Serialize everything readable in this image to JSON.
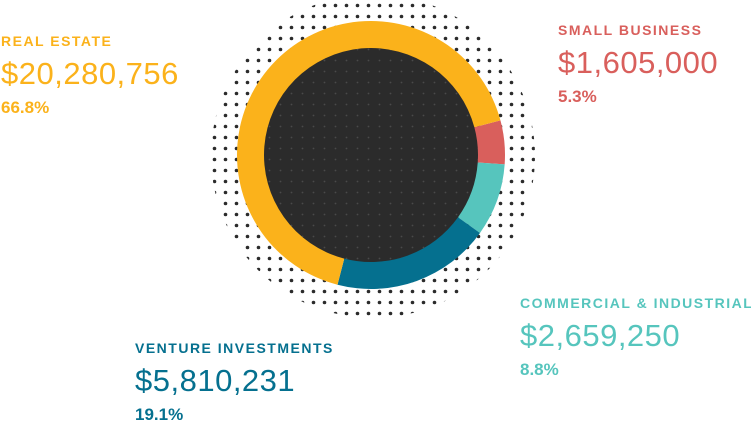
{
  "colors": {
    "real_estate": "#fbb21b",
    "small_business": "#d95f5c",
    "commercial_industrial": "#56c5bd",
    "venture_investments": "#05708f",
    "center": "#2b2b2b",
    "dots": "#2b2b2b"
  },
  "labels": {
    "real_estate": {
      "name": "REAL ESTATE",
      "amount": "$20,280,756",
      "percent": "66.8%"
    },
    "small_business": {
      "name": "SMALL BUSINESS",
      "amount": "$1,605,000",
      "percent": "5.3%"
    },
    "commercial_industrial": {
      "name": "COMMERCIAL & INDUSTRIAL",
      "amount": "$2,659,250",
      "percent": "8.8%"
    },
    "venture_investments": {
      "name": "VENTURE INVESTMENTS",
      "amount": "$5,810,231",
      "percent": "19.1%"
    }
  },
  "chart_data": {
    "type": "pie",
    "style": "donut",
    "categories": [
      "REAL ESTATE",
      "SMALL BUSINESS",
      "COMMERCIAL & INDUSTRIAL",
      "VENTURE INVESTMENTS"
    ],
    "values": [
      20280756,
      1605000,
      2659250,
      5810231
    ],
    "percents": [
      66.8,
      5.3,
      8.8,
      19.1
    ],
    "series_colors": [
      "#fbb21b",
      "#d95f5c",
      "#56c5bd",
      "#05708f"
    ],
    "title": "",
    "legend": "none"
  }
}
